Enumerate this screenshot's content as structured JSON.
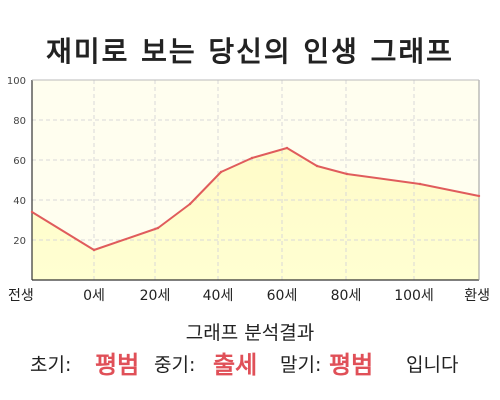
{
  "chart_data": {
    "type": "area",
    "title": "재미로 보는 당신의 인생 그래프",
    "x_tick_labels": [
      "전생",
      "0세",
      "20세",
      "40세",
      "60세",
      "80세",
      "100세",
      "환생"
    ],
    "y_ticks": [
      20,
      40,
      60,
      80,
      100
    ],
    "ylim": [
      0,
      100
    ],
    "series": [
      {
        "values": [
          34,
          15,
          26,
          38,
          54,
          61,
          66,
          57,
          53,
          48,
          42
        ]
      }
    ],
    "grid": true,
    "colors": {
      "line": "#e05c5c",
      "fill_top": "#fffbc8",
      "fill_bottom": "#ffffd2",
      "plot_bg": "#fffeef",
      "grid": "#d8d8d8"
    }
  },
  "result": {
    "heading": "그래프 분석결과",
    "early_label": "초기:",
    "early_value": "평범",
    "mid_label": "중기:",
    "mid_value": "출세",
    "late_label": "말기:",
    "late_value": "평범",
    "ending": "입니다"
  }
}
